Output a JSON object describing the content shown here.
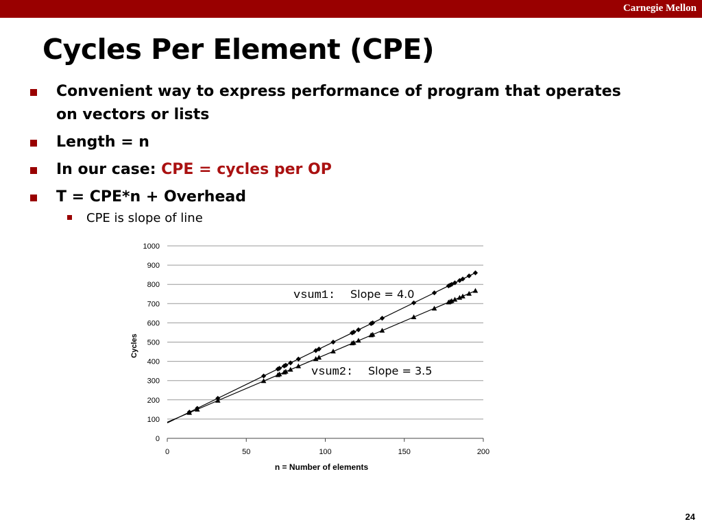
{
  "header": {
    "brand": "Carnegie Mellon"
  },
  "slide": {
    "title": "Cycles Per Element (CPE)",
    "bullets": [
      {
        "text": "Convenient way to express performance of program that operates on vectors or lists"
      },
      {
        "text": "Length = n"
      },
      {
        "prefix": "In our case: ",
        "highlight": "CPE = cycles per OP"
      },
      {
        "text": "T = CPE*n + Overhead"
      }
    ],
    "sub_bullet": "CPE is slope of line",
    "page_number": "24"
  },
  "colors": {
    "brand_bar": "#990000",
    "highlight": "#aa1111",
    "bullet": "#990000"
  },
  "chart_data": {
    "type": "scatter",
    "xlabel": "n = Number of elements",
    "ylabel": "Cycles",
    "xlim": [
      0,
      200
    ],
    "ylim": [
      0,
      1000
    ],
    "x_ticks": [
      "0",
      "50",
      "100",
      "150",
      "200"
    ],
    "y_ticks": [
      "0",
      "100",
      "200",
      "300",
      "400",
      "500",
      "600",
      "700",
      "800",
      "900",
      "1000"
    ],
    "grid": "horizontal",
    "series": [
      {
        "marker": "diamond",
        "annotation": {
          "code": "vsum1",
          "sep": ":",
          "text": "Slope = 4.0"
        },
        "fit": {
          "slope": 4.0,
          "intercept": 80
        },
        "points": [
          [
            14,
            136
          ],
          [
            19,
            156
          ],
          [
            32,
            208
          ],
          [
            61,
            324
          ],
          [
            70,
            360
          ],
          [
            71,
            364
          ],
          [
            74,
            376
          ],
          [
            75,
            380
          ],
          [
            78,
            392
          ],
          [
            83,
            412
          ],
          [
            94,
            456
          ],
          [
            96,
            464
          ],
          [
            105,
            500
          ],
          [
            117,
            548
          ],
          [
            118,
            552
          ],
          [
            121,
            564
          ],
          [
            129,
            596
          ],
          [
            130,
            600
          ],
          [
            136,
            624
          ],
          [
            156,
            704
          ],
          [
            169,
            756
          ],
          [
            178,
            792
          ],
          [
            179,
            796
          ],
          [
            180,
            800
          ],
          [
            182,
            808
          ],
          [
            185,
            820
          ],
          [
            187,
            828
          ],
          [
            191,
            844
          ],
          [
            195,
            860
          ]
        ]
      },
      {
        "marker": "triangle",
        "annotation": {
          "code": "vsum2",
          "sep": ":",
          "text": "Slope = 3.5"
        },
        "fit": {
          "slope": 3.5,
          "intercept": 84
        },
        "points": [
          [
            14,
            133
          ],
          [
            19,
            150
          ],
          [
            32,
            196
          ],
          [
            61,
            298
          ],
          [
            70,
            329
          ],
          [
            71,
            333
          ],
          [
            74,
            343
          ],
          [
            75,
            347
          ],
          [
            78,
            357
          ],
          [
            83,
            375
          ],
          [
            94,
            413
          ],
          [
            96,
            420
          ],
          [
            105,
            452
          ],
          [
            117,
            494
          ],
          [
            118,
            497
          ],
          [
            121,
            508
          ],
          [
            129,
            536
          ],
          [
            130,
            539
          ],
          [
            136,
            560
          ],
          [
            156,
            630
          ],
          [
            169,
            675
          ],
          [
            178,
            707
          ],
          [
            179,
            710
          ],
          [
            180,
            714
          ],
          [
            182,
            721
          ],
          [
            185,
            731
          ],
          [
            187,
            738
          ],
          [
            191,
            752
          ],
          [
            195,
            767
          ]
        ]
      }
    ]
  }
}
